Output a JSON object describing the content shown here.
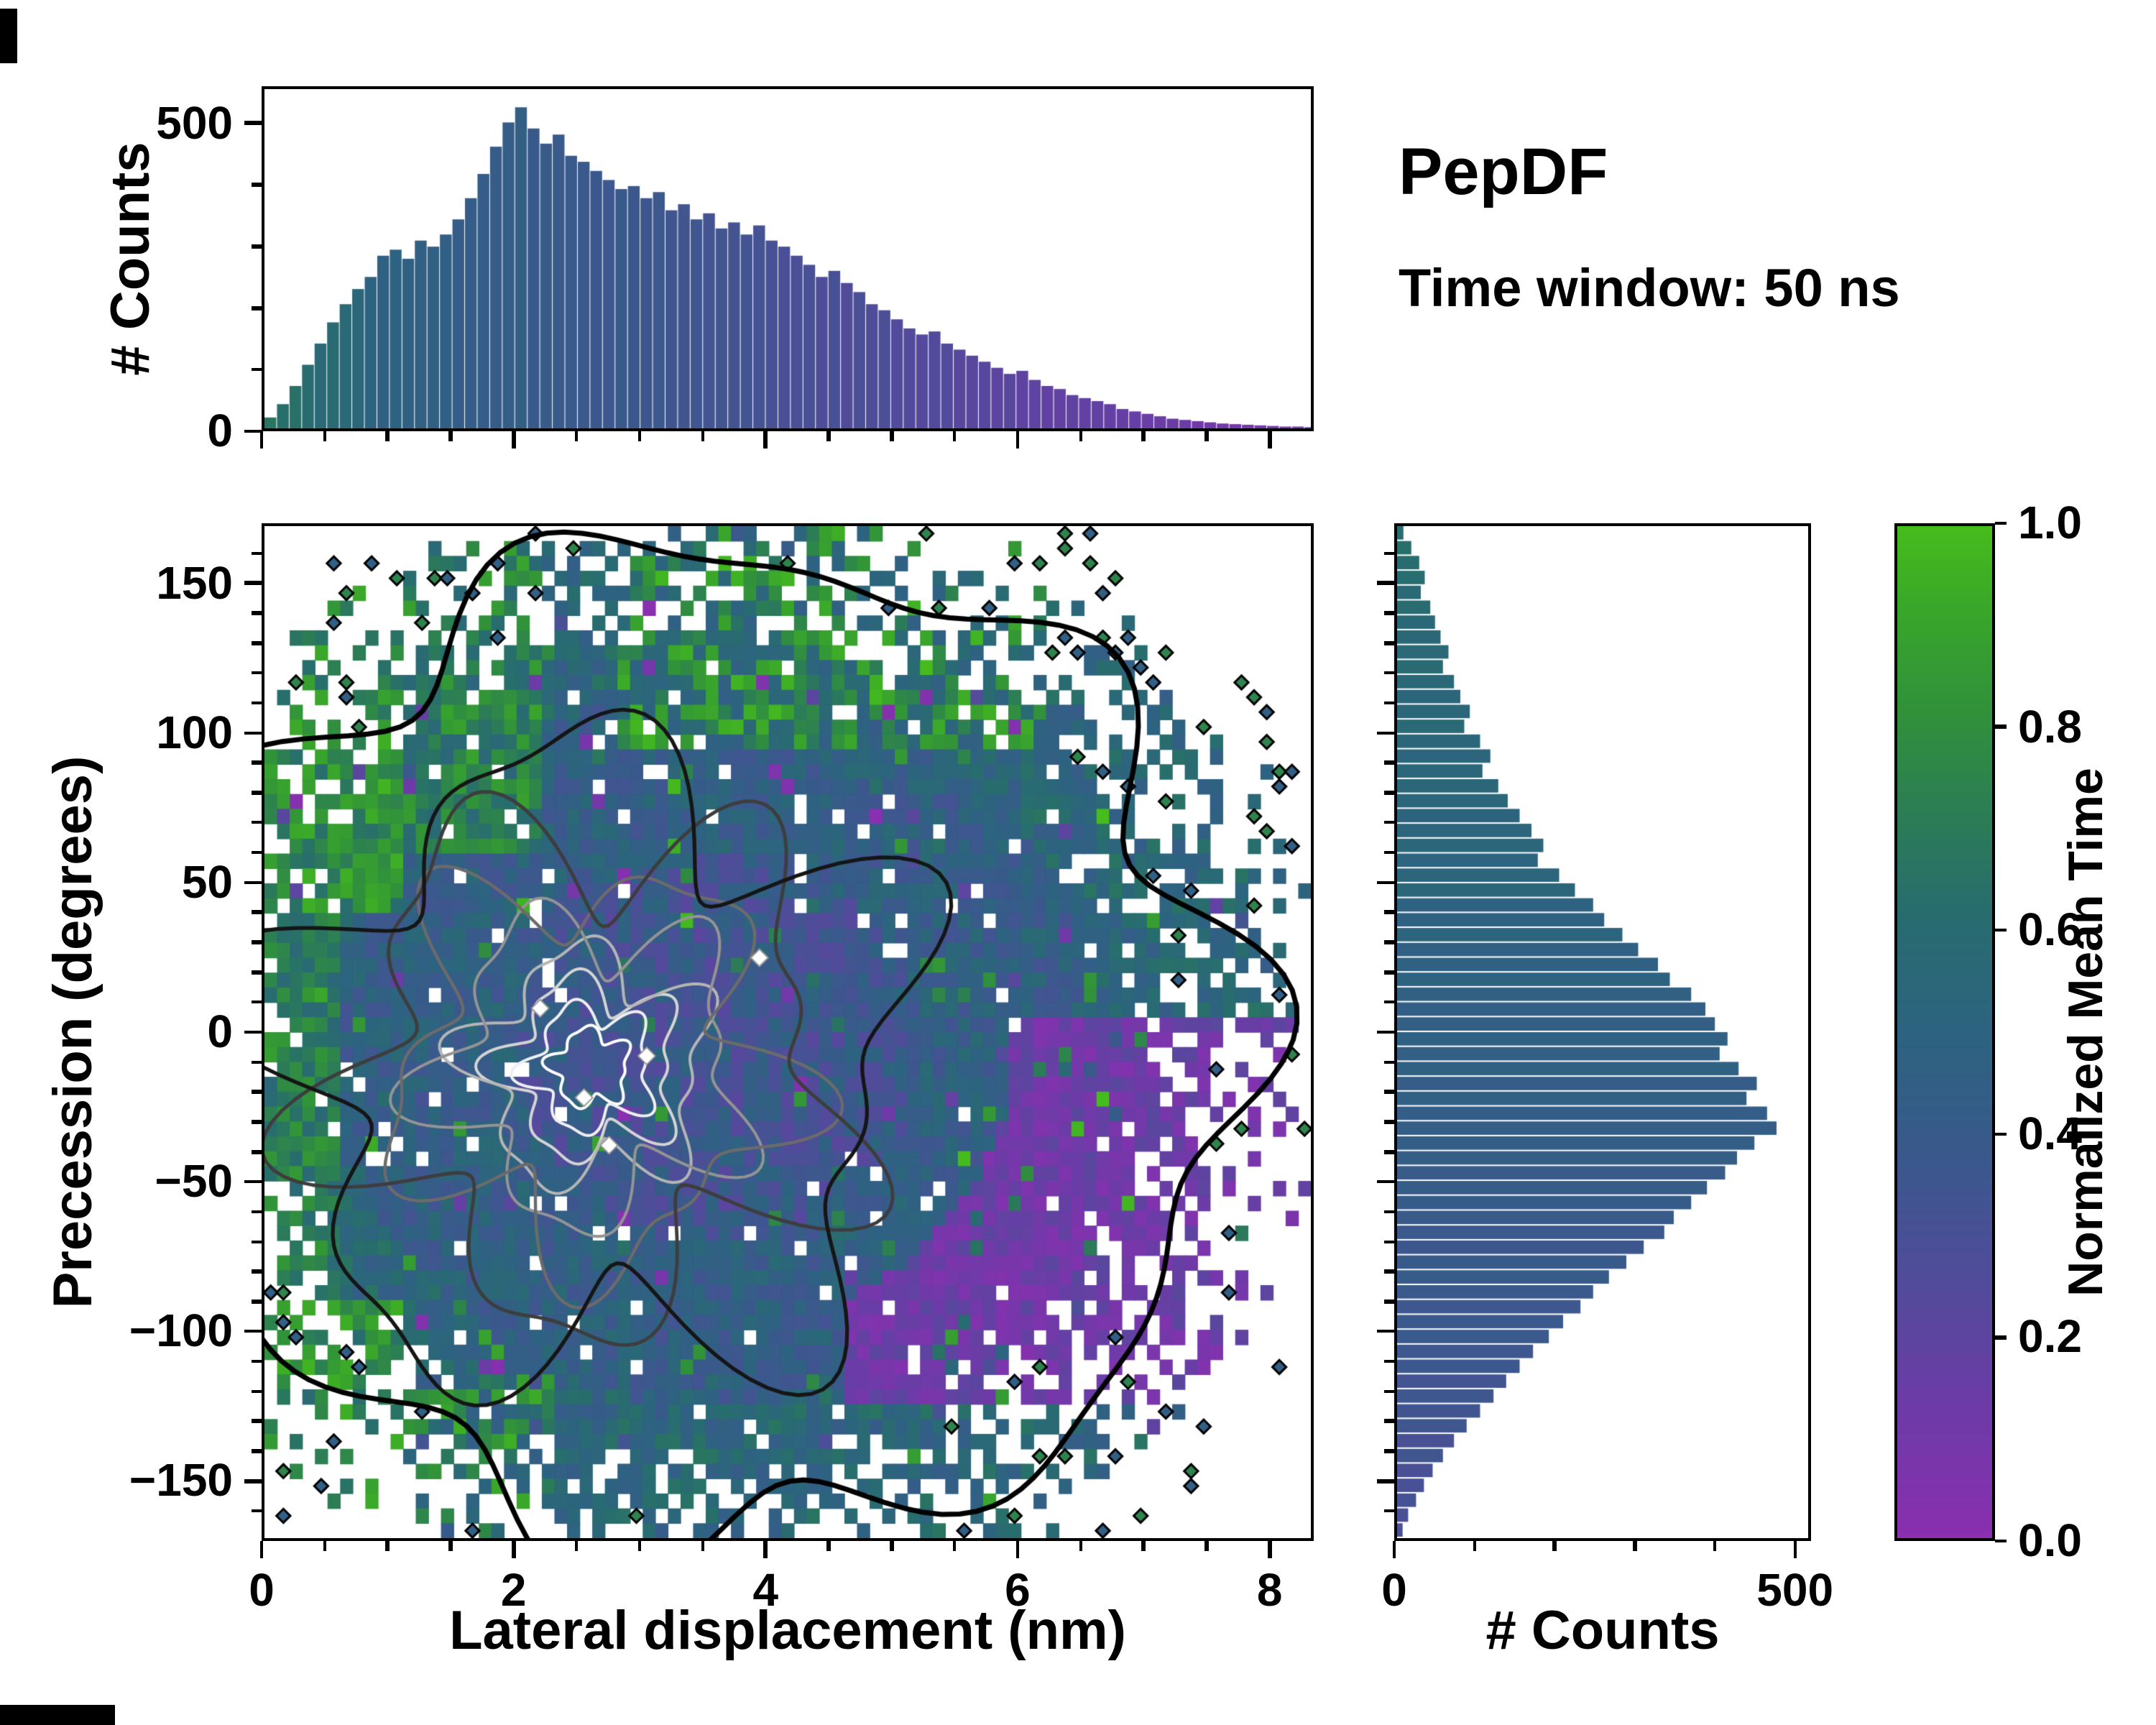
{
  "title": {
    "name": "PepDF",
    "subtitle": "Time window: 50 ns"
  },
  "chart_data": {
    "type": "heatmap",
    "main": {
      "xlabel": "Lateral displacement (nm)",
      "ylabel": "Precession (degrees)",
      "x_range": [
        0,
        8.35
      ],
      "y_range": [
        -170,
        170
      ],
      "x_tick_values": [
        0,
        2,
        4,
        6,
        8
      ],
      "x_tick_labels": [
        "0",
        "2",
        "4",
        "6",
        "8"
      ],
      "y_tick_values": [
        150,
        100,
        50,
        0,
        -50,
        -100,
        -150
      ],
      "y_tick_labels": [
        "150",
        "100",
        "50",
        "0",
        "−50",
        "−100",
        "−150"
      ],
      "grid": [
        83,
        68
      ],
      "seed": 1337,
      "density_center": [
        2.6,
        -12
      ],
      "blob_center": [
        3.6,
        -5
      ],
      "blob_radius_x": 4.3,
      "blob_radius_y": 172
    },
    "top_hist": {
      "ylabel": "# Counts",
      "y_tick_values": [
        0,
        500
      ],
      "y_tick_labels": [
        "0",
        "500"
      ],
      "y_max": 560,
      "bin_width": 0.1,
      "values": [
        18,
        40,
        70,
        105,
        140,
        175,
        205,
        230,
        250,
        285,
        295,
        280,
        310,
        300,
        320,
        345,
        380,
        420,
        465,
        505,
        530,
        495,
        470,
        485,
        450,
        440,
        425,
        410,
        395,
        400,
        380,
        390,
        360,
        370,
        345,
        355,
        330,
        340,
        320,
        335,
        310,
        300,
        285,
        270,
        250,
        260,
        240,
        225,
        205,
        195,
        180,
        165,
        155,
        160,
        140,
        130,
        120,
        110,
        100,
        90,
        95,
        80,
        70,
        65,
        55,
        50,
        45,
        40,
        32,
        28,
        24,
        20,
        16,
        14,
        12,
        10,
        8,
        7,
        6,
        5,
        4,
        3,
        3,
        2
      ]
    },
    "right_hist": {
      "xlabel": "# Counts",
      "x_tick_values": [
        0,
        500
      ],
      "x_tick_labels": [
        "0",
        "500"
      ],
      "x_max": 520,
      "bin_width": 5,
      "values": [
        8,
        18,
        28,
        35,
        30,
        42,
        48,
        55,
        65,
        58,
        72,
        80,
        92,
        85,
        105,
        118,
        108,
        128,
        140,
        155,
        170,
        185,
        178,
        205,
        225,
        248,
        262,
        285,
        305,
        330,
        345,
        372,
        390,
        402,
        418,
        408,
        432,
        455,
        442,
        468,
        480,
        452,
        430,
        415,
        392,
        372,
        350,
        338,
        312,
        290,
        268,
        248,
        232,
        210,
        192,
        172,
        155,
        138,
        122,
        105,
        88,
        72,
        58,
        45,
        34,
        24,
        14,
        7
      ]
    },
    "colorbar": {
      "label": "Normalized Mean Time",
      "tick_values": [
        1.0,
        0.8,
        0.6,
        0.4,
        0.2,
        0.0
      ],
      "tick_labels": [
        "1.0",
        "0.8",
        "0.6",
        "0.4",
        "0.2",
        "0.0"
      ],
      "range": [
        0,
        1
      ],
      "stops": [
        [
          0.0,
          "#8a2fb0"
        ],
        [
          0.12,
          "#6f3aa8"
        ],
        [
          0.25,
          "#524b9b"
        ],
        [
          0.38,
          "#3a598c"
        ],
        [
          0.5,
          "#2d6380"
        ],
        [
          0.62,
          "#286d6e"
        ],
        [
          0.72,
          "#2c7e54"
        ],
        [
          0.82,
          "#31923a"
        ],
        [
          0.92,
          "#3aa72a"
        ],
        [
          1.0,
          "#46bd1c"
        ]
      ]
    }
  }
}
